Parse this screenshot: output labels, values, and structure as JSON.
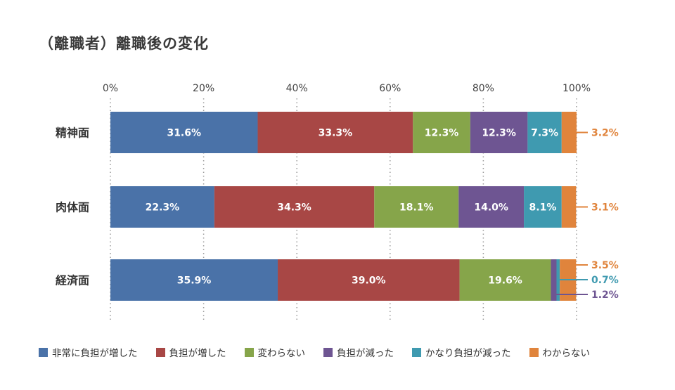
{
  "title": "（離職者）離職後の変化",
  "chart_data": {
    "type": "bar",
    "orientation": "horizontal",
    "stacked": true,
    "title": "（離職者）離職後の変化",
    "xlim": [
      0,
      100
    ],
    "x_ticks": [
      "0%",
      "20%",
      "40%",
      "60%",
      "80%",
      "100%"
    ],
    "grid": true,
    "legend_position": "bottom",
    "categories": [
      "精神面",
      "肉体面",
      "経済面"
    ],
    "series": [
      {
        "name": "非常に負担が増した",
        "color": "#4a72a8",
        "values": [
          31.6,
          22.3,
          35.9
        ],
        "labels": [
          "31.6%",
          "22.3%",
          "35.9%"
        ]
      },
      {
        "name": "負担が増した",
        "color": "#a84745",
        "values": [
          33.3,
          34.3,
          39.0
        ],
        "labels": [
          "33.3%",
          "34.3%",
          "39.0%"
        ]
      },
      {
        "name": "変わらない",
        "color": "#86a54a",
        "values": [
          12.3,
          18.1,
          19.6
        ],
        "labels": [
          "12.3%",
          "18.1%",
          "19.6%"
        ]
      },
      {
        "name": "負担が減った",
        "color": "#6e5592",
        "values": [
          12.3,
          14.0,
          1.2
        ],
        "labels": [
          "12.3%",
          "14.0%",
          "1.2%"
        ]
      },
      {
        "name": "かなり負担が減った",
        "color": "#3f9ab0",
        "values": [
          7.3,
          8.1,
          0.7
        ],
        "labels": [
          "7.3%",
          "8.1%",
          "0.7%"
        ]
      },
      {
        "name": "わからない",
        "color": "#e0843c",
        "values": [
          3.2,
          3.1,
          3.5
        ],
        "labels": [
          "3.2%",
          "3.1%",
          "3.5%"
        ]
      }
    ]
  }
}
